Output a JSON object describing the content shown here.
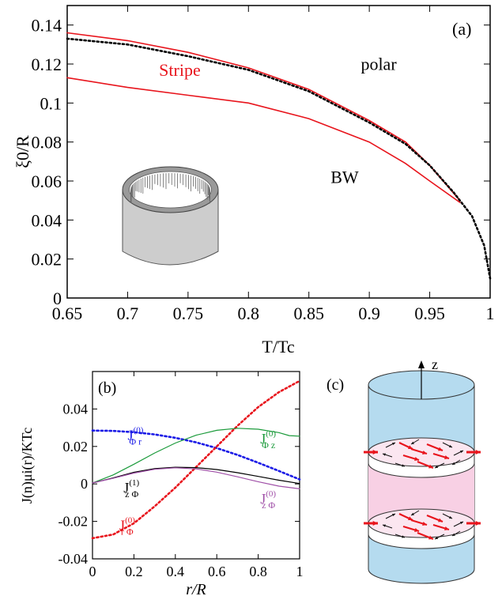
{
  "chart_data": [
    {
      "type": "line",
      "panel_label": "(a)",
      "xlabel": "T/Tc",
      "ylabel": "ξ0/R",
      "xlim": [
        0.65,
        1.0
      ],
      "ylim": [
        0,
        0.15
      ],
      "xticks": [
        0.65,
        0.7,
        0.75,
        0.8,
        0.85,
        0.9,
        0.95,
        1
      ],
      "xtick_labels": [
        "0.65",
        "0.7",
        "0.75",
        "0.8",
        "0.85",
        "0.9",
        "0.95",
        "1"
      ],
      "yticks": [
        0,
        0.02,
        0.04,
        0.06,
        0.08,
        0.1,
        0.12,
        0.14
      ],
      "ytick_labels": [
        "0",
        "0.02",
        "0.04",
        "0.06",
        "0.08",
        "0.1",
        "0.12",
        "0.14"
      ],
      "grid": false,
      "series": [
        {
          "color": "#e8141c",
          "style": "solid",
          "x": [
            0.65,
            0.7,
            0.75,
            0.8,
            0.85,
            0.9,
            0.93,
            0.95,
            0.975
          ],
          "y": [
            0.136,
            0.132,
            0.126,
            0.118,
            0.107,
            0.091,
            0.08,
            0.068,
            0.05
          ]
        },
        {
          "color": "#e8141c",
          "style": "solid",
          "x": [
            0.65,
            0.7,
            0.75,
            0.8,
            0.85,
            0.9,
            0.93,
            0.95,
            0.975
          ],
          "y": [
            0.113,
            0.108,
            0.104,
            0.1,
            0.092,
            0.08,
            0.069,
            0.06,
            0.049
          ]
        },
        {
          "color": "#000000",
          "style": "dotted",
          "x": [
            0.65,
            0.7,
            0.75,
            0.8,
            0.85,
            0.9,
            0.93,
            0.95,
            0.97,
            0.985,
            0.995,
            1.0
          ],
          "y": [
            0.133,
            0.13,
            0.124,
            0.117,
            0.106,
            0.09,
            0.079,
            0.068,
            0.054,
            0.042,
            0.027,
            0.01
          ]
        }
      ],
      "annotations": [
        {
          "text": "polar",
          "x": 0.893,
          "y": 0.117,
          "color": "#000000"
        },
        {
          "text": "Stripe",
          "x": 0.726,
          "y": 0.114,
          "color": "#e8141c"
        },
        {
          "text": "BW",
          "x": 0.868,
          "y": 0.059,
          "color": "#000000"
        }
      ]
    },
    {
      "type": "line",
      "panel_label": "(b)",
      "xlabel": "r/R",
      "ylabel": "J(n)μi(r)/KTc",
      "xlim": [
        0,
        1
      ],
      "ylim": [
        -0.04,
        0.06
      ],
      "xticks": [
        0,
        0.2,
        0.4,
        0.6,
        0.8,
        1
      ],
      "xtick_labels": [
        "0",
        "0.2",
        "0.4",
        "0.6",
        "0.8",
        "1"
      ],
      "yticks": [
        -0.04,
        -0.02,
        0,
        0.02,
        0.04
      ],
      "ytick_labels": [
        "-0.04",
        "-0.02",
        "0",
        "0.02",
        "0.04"
      ],
      "grid": false,
      "series": [
        {
          "color": "#1a1ae6",
          "style": "dotted",
          "x": [
            0,
            0.1,
            0.2,
            0.3,
            0.4,
            0.5,
            0.6,
            0.7,
            0.8,
            0.9,
            1.0
          ],
          "y": [
            0.0285,
            0.0283,
            0.0276,
            0.0264,
            0.0246,
            0.0222,
            0.0191,
            0.0155,
            0.0113,
            0.0069,
            0.0024
          ]
        },
        {
          "color": "#e8141c",
          "style": "dotted",
          "x": [
            0,
            0.1,
            0.2,
            0.3,
            0.4,
            0.5,
            0.6,
            0.7,
            0.8,
            0.9,
            1.0
          ],
          "y": [
            -0.029,
            -0.027,
            -0.021,
            -0.012,
            -0.002,
            0.009,
            0.02,
            0.031,
            0.041,
            0.049,
            0.055
          ]
        },
        {
          "color": "#1a9a3a",
          "style": "solid",
          "x": [
            0,
            0.1,
            0.2,
            0.3,
            0.4,
            0.5,
            0.6,
            0.7,
            0.8,
            0.9,
            0.95,
            1.0
          ],
          "y": [
            0.0005,
            0.0048,
            0.0105,
            0.0165,
            0.0218,
            0.026,
            0.0286,
            0.0297,
            0.0292,
            0.0274,
            0.0258,
            0.0255
          ]
        },
        {
          "color": "#000000",
          "style": "solid",
          "x": [
            0,
            0.1,
            0.2,
            0.3,
            0.4,
            0.5,
            0.6,
            0.7,
            0.8,
            0.9,
            1.0
          ],
          "y": [
            0.0005,
            0.0032,
            0.0062,
            0.0082,
            0.0089,
            0.0087,
            0.0077,
            0.006,
            0.004,
            0.002,
            0.0002
          ]
        },
        {
          "color": "#a050a8",
          "style": "solid",
          "x": [
            0,
            0.1,
            0.2,
            0.3,
            0.4,
            0.5,
            0.6,
            0.7,
            0.8,
            0.9,
            1.0
          ],
          "y": [
            0.0005,
            0.003,
            0.0058,
            0.0078,
            0.0086,
            0.008,
            0.0063,
            0.0038,
            0.0012,
            -0.0012,
            -0.0026
          ]
        }
      ],
      "annotations": [
        {
          "base": "J",
          "sub": "Φ r",
          "sup": "(0)",
          "color": "#1a1ae6",
          "x": 0.17,
          "y": 0.0235
        },
        {
          "base": "J",
          "sub": "Φ z",
          "sup": "(0)",
          "color": "#1a9a3a",
          "x": 0.81,
          "y": 0.0215
        },
        {
          "base": "J",
          "sub": "z Φ",
          "sup": "(1)",
          "color": "#000000",
          "x": 0.15,
          "y": -0.0045
        },
        {
          "base": "J",
          "sub": "z Φ",
          "sup": "(0)",
          "color": "#a050a8",
          "x": 0.81,
          "y": -0.0105
        },
        {
          "base": "J",
          "sub": "r Φ",
          "sup": "(0)",
          "color": "#e8141c",
          "x": 0.13,
          "y": -0.0245
        }
      ]
    }
  ],
  "panel_c": {
    "label": "(c)",
    "axis_label": "z",
    "colors": {
      "cylinder": "#b5dbef",
      "band": "#f8d0e4",
      "arrow_red": "#e8141c",
      "arrow_black": "#111111"
    }
  },
  "inset": {
    "colors": {
      "body": "#cdcdcd",
      "rim": "#9a9a9a"
    }
  }
}
